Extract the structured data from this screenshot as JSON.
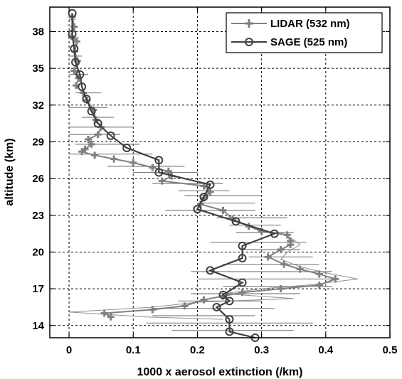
{
  "chart_data": {
    "type": "line",
    "xlabel": "1000 x aerosol extinction (/km)",
    "ylabel": "altitude (km)",
    "xlim": [
      -0.03,
      0.5
    ],
    "ylim": [
      13,
      40
    ],
    "xticks": [
      0,
      0.1,
      0.2,
      0.3,
      0.4,
      0.5
    ],
    "xtick_labels": [
      "0",
      "0.1",
      "0.2",
      "0.3",
      "0.4",
      "0.5"
    ],
    "yticks": [
      14,
      17,
      20,
      23,
      26,
      29,
      32,
      35,
      38
    ],
    "ytick_labels": [
      "14",
      "17",
      "20",
      "23",
      "26",
      "29",
      "32",
      "35",
      "38"
    ],
    "grid": true,
    "legend_position": "top-right",
    "series": [
      {
        "name": "LIDAR (532 nm)",
        "color": "#808080",
        "marker": "plus",
        "points": [
          [
            0.005,
            39.2
          ],
          [
            0.008,
            38.4
          ],
          [
            0.004,
            37.6
          ],
          [
            0.012,
            37.2
          ],
          [
            0.009,
            36.4
          ],
          [
            0.013,
            35.6
          ],
          [
            0.008,
            34.8
          ],
          [
            0.015,
            34.2
          ],
          [
            0.011,
            33.6
          ],
          [
            0.022,
            33.0
          ],
          [
            0.028,
            32.4
          ],
          [
            0.038,
            31.6
          ],
          [
            0.042,
            30.8
          ],
          [
            0.05,
            30.2
          ],
          [
            0.045,
            29.6
          ],
          [
            0.03,
            29.2
          ],
          [
            0.035,
            28.8
          ],
          [
            0.025,
            28.4
          ],
          [
            0.02,
            28.2
          ],
          [
            0.04,
            27.9
          ],
          [
            0.07,
            27.6
          ],
          [
            0.1,
            27.3
          ],
          [
            0.13,
            26.9
          ],
          [
            0.155,
            26.6
          ],
          [
            0.16,
            26.2
          ],
          [
            0.145,
            25.8
          ],
          [
            0.21,
            25.4
          ],
          [
            0.22,
            24.9
          ],
          [
            0.21,
            24.4
          ],
          [
            0.205,
            23.9
          ],
          [
            0.24,
            23.4
          ],
          [
            0.255,
            22.7
          ],
          [
            0.28,
            22.1
          ],
          [
            0.3,
            21.7
          ],
          [
            0.34,
            21.4
          ],
          [
            0.345,
            20.9
          ],
          [
            0.345,
            20.6
          ],
          [
            0.33,
            20.2
          ],
          [
            0.31,
            19.6
          ],
          [
            0.335,
            19.0
          ],
          [
            0.36,
            18.6
          ],
          [
            0.39,
            18.2
          ],
          [
            0.415,
            17.8
          ],
          [
            0.39,
            17.3
          ],
          [
            0.33,
            17.0
          ],
          [
            0.27,
            16.7
          ],
          [
            0.24,
            16.4
          ],
          [
            0.21,
            16.1
          ],
          [
            0.18,
            15.6
          ],
          [
            0.13,
            15.3
          ],
          [
            0.055,
            15.0
          ],
          [
            0.065,
            14.7
          ]
        ],
        "xerr_bars": [
          [
            39.0,
            0.0,
            0.01
          ],
          [
            37.5,
            0.0,
            0.015
          ],
          [
            36.0,
            0.0,
            0.02
          ],
          [
            34.5,
            0.0,
            0.03
          ],
          [
            33.0,
            0.01,
            0.05
          ],
          [
            31.8,
            0.0,
            0.06
          ],
          [
            31.0,
            0.02,
            0.07
          ],
          [
            30.2,
            0.0,
            0.1
          ],
          [
            29.6,
            0.0,
            0.08
          ],
          [
            28.8,
            0.01,
            0.11
          ],
          [
            28.0,
            0.0,
            0.13
          ],
          [
            27.0,
            0.06,
            0.18
          ],
          [
            26.5,
            0.1,
            0.2
          ],
          [
            25.6,
            0.13,
            0.24
          ],
          [
            25.0,
            0.17,
            0.25
          ],
          [
            24.6,
            0.18,
            0.3
          ],
          [
            24.0,
            0.2,
            0.29
          ],
          [
            23.4,
            0.15,
            0.29
          ],
          [
            22.8,
            0.23,
            0.34
          ],
          [
            22.2,
            0.25,
            0.33
          ],
          [
            21.6,
            0.26,
            0.35
          ],
          [
            20.8,
            0.22,
            0.37
          ],
          [
            20.2,
            0.27,
            0.36
          ],
          [
            19.6,
            0.28,
            0.38
          ],
          [
            19.0,
            0.24,
            0.39
          ],
          [
            18.4,
            0.19,
            0.41
          ],
          [
            17.8,
            0.2,
            0.42
          ],
          [
            17.2,
            0.24,
            0.41
          ],
          [
            16.6,
            0.19,
            0.36
          ],
          [
            16.0,
            0.17,
            0.3
          ],
          [
            15.4,
            0.13,
            0.32
          ],
          [
            14.8,
            0.13,
            0.29
          ],
          [
            14.2,
            0.12,
            0.38
          ],
          [
            13.6,
            0.16,
            0.35
          ]
        ],
        "thin_line": [
          [
            0.33,
            21.6
          ],
          [
            0.35,
            21.0
          ],
          [
            0.36,
            20.6
          ],
          [
            0.34,
            20.0
          ],
          [
            0.33,
            19.4
          ],
          [
            0.36,
            18.8
          ],
          [
            0.4,
            18.3
          ],
          [
            0.45,
            17.8
          ],
          [
            0.37,
            17.3
          ],
          [
            0.3,
            17.0
          ],
          [
            0.24,
            16.6
          ],
          [
            0.35,
            16.2
          ],
          [
            0.2,
            15.9
          ],
          [
            0.13,
            15.5
          ],
          [
            0.0,
            15.1
          ],
          [
            0.06,
            14.9
          ],
          [
            0.12,
            14.7
          ],
          [
            0.24,
            14.5
          ]
        ]
      },
      {
        "name": "SAGE (525 nm)",
        "color": "#404040",
        "marker": "circle",
        "points": [
          [
            0.005,
            39.5
          ],
          [
            0.005,
            37.8
          ],
          [
            0.008,
            36.6
          ],
          [
            0.01,
            35.5
          ],
          [
            0.017,
            34.5
          ],
          [
            0.02,
            33.5
          ],
          [
            0.027,
            32.5
          ],
          [
            0.035,
            31.5
          ],
          [
            0.045,
            30.5
          ],
          [
            0.065,
            29.5
          ],
          [
            0.09,
            28.5
          ],
          [
            0.14,
            27.5
          ],
          [
            0.14,
            26.5
          ],
          [
            0.22,
            25.5
          ],
          [
            0.21,
            24.5
          ],
          [
            0.2,
            23.5
          ],
          [
            0.26,
            22.5
          ],
          [
            0.32,
            21.5
          ],
          [
            0.27,
            20.5
          ],
          [
            0.27,
            19.5
          ],
          [
            0.22,
            18.5
          ],
          [
            0.27,
            17.5
          ],
          [
            0.24,
            16.5
          ],
          [
            0.25,
            16.0
          ],
          [
            0.23,
            15.5
          ],
          [
            0.25,
            14.5
          ],
          [
            0.25,
            13.5
          ],
          [
            0.29,
            13.0
          ]
        ]
      }
    ]
  }
}
